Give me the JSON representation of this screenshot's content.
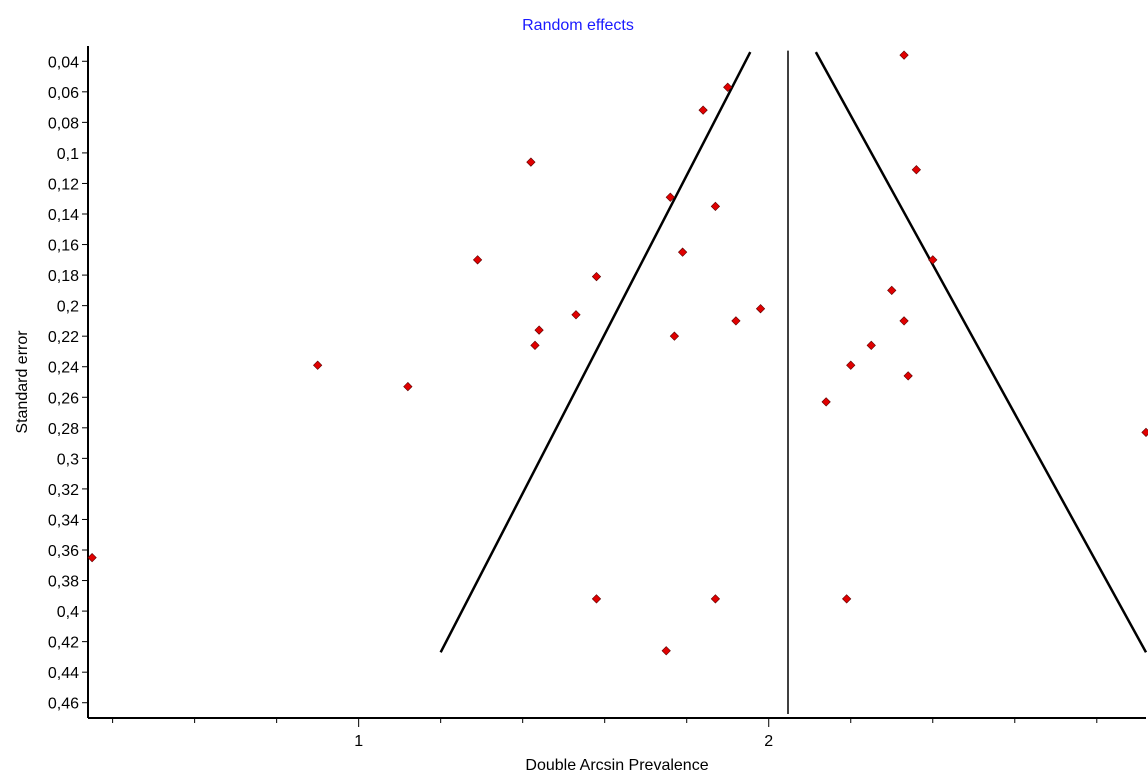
{
  "chart_data": {
    "type": "scatter",
    "title": "Random effects",
    "xlabel": "Double Arcsin Prevalence",
    "ylabel": "Standard error",
    "xlim": [
      0.34,
      2.92
    ],
    "ylim": [
      0.03,
      0.47
    ],
    "y_inverted": true,
    "x_ticks": [
      {
        "value": 1,
        "label": "1"
      },
      {
        "value": 2,
        "label": "2"
      }
    ],
    "y_ticks": [
      {
        "value": 0.04,
        "label": "0,04"
      },
      {
        "value": 0.06,
        "label": "0,06"
      },
      {
        "value": 0.08,
        "label": "0,08"
      },
      {
        "value": 0.1,
        "label": "0,1"
      },
      {
        "value": 0.12,
        "label": "0,12"
      },
      {
        "value": 0.14,
        "label": "0,14"
      },
      {
        "value": 0.16,
        "label": "0,16"
      },
      {
        "value": 0.18,
        "label": "0,18"
      },
      {
        "value": 0.2,
        "label": "0,2"
      },
      {
        "value": 0.22,
        "label": "0,22"
      },
      {
        "value": 0.24,
        "label": "0,24"
      },
      {
        "value": 0.26,
        "label": "0,26"
      },
      {
        "value": 0.28,
        "label": "0,28"
      },
      {
        "value": 0.3,
        "label": "0,3"
      },
      {
        "value": 0.32,
        "label": "0,32"
      },
      {
        "value": 0.34,
        "label": "0,34"
      },
      {
        "value": 0.36,
        "label": "0,36"
      },
      {
        "value": 0.38,
        "label": "0,38"
      },
      {
        "value": 0.4,
        "label": "0,4"
      },
      {
        "value": 0.42,
        "label": "0,42"
      },
      {
        "value": 0.44,
        "label": "0,44"
      },
      {
        "value": 0.46,
        "label": "0,46"
      }
    ],
    "grid": false,
    "pooled_estimate": 2.047,
    "funnel_limits": {
      "left": [
        [
          1.955,
          0.034
        ],
        [
          1.2,
          0.427
        ]
      ],
      "right": [
        [
          2.115,
          0.034
        ],
        [
          2.92,
          0.427
        ]
      ]
    },
    "point_color": "#e00000",
    "points": [
      {
        "x": 2.33,
        "y": 0.036
      },
      {
        "x": 1.9,
        "y": 0.057
      },
      {
        "x": 1.84,
        "y": 0.072
      },
      {
        "x": 1.42,
        "y": 0.106
      },
      {
        "x": 2.36,
        "y": 0.111
      },
      {
        "x": 1.76,
        "y": 0.129
      },
      {
        "x": 1.87,
        "y": 0.135
      },
      {
        "x": 1.79,
        "y": 0.165
      },
      {
        "x": 1.29,
        "y": 0.17
      },
      {
        "x": 2.4,
        "y": 0.17
      },
      {
        "x": 1.58,
        "y": 0.181
      },
      {
        "x": 2.3,
        "y": 0.19
      },
      {
        "x": 1.98,
        "y": 0.202
      },
      {
        "x": 1.53,
        "y": 0.206
      },
      {
        "x": 1.92,
        "y": 0.21
      },
      {
        "x": 2.33,
        "y": 0.21
      },
      {
        "x": 1.44,
        "y": 0.216
      },
      {
        "x": 1.77,
        "y": 0.22
      },
      {
        "x": 1.43,
        "y": 0.226
      },
      {
        "x": 2.25,
        "y": 0.226
      },
      {
        "x": 0.9,
        "y": 0.239
      },
      {
        "x": 2.2,
        "y": 0.239
      },
      {
        "x": 2.34,
        "y": 0.246
      },
      {
        "x": 1.12,
        "y": 0.253
      },
      {
        "x": 2.14,
        "y": 0.263
      },
      {
        "x": 2.92,
        "y": 0.283
      },
      {
        "x": 0.35,
        "y": 0.365
      },
      {
        "x": 1.58,
        "y": 0.392
      },
      {
        "x": 1.87,
        "y": 0.392
      },
      {
        "x": 2.19,
        "y": 0.392
      },
      {
        "x": 1.75,
        "y": 0.426
      }
    ]
  }
}
